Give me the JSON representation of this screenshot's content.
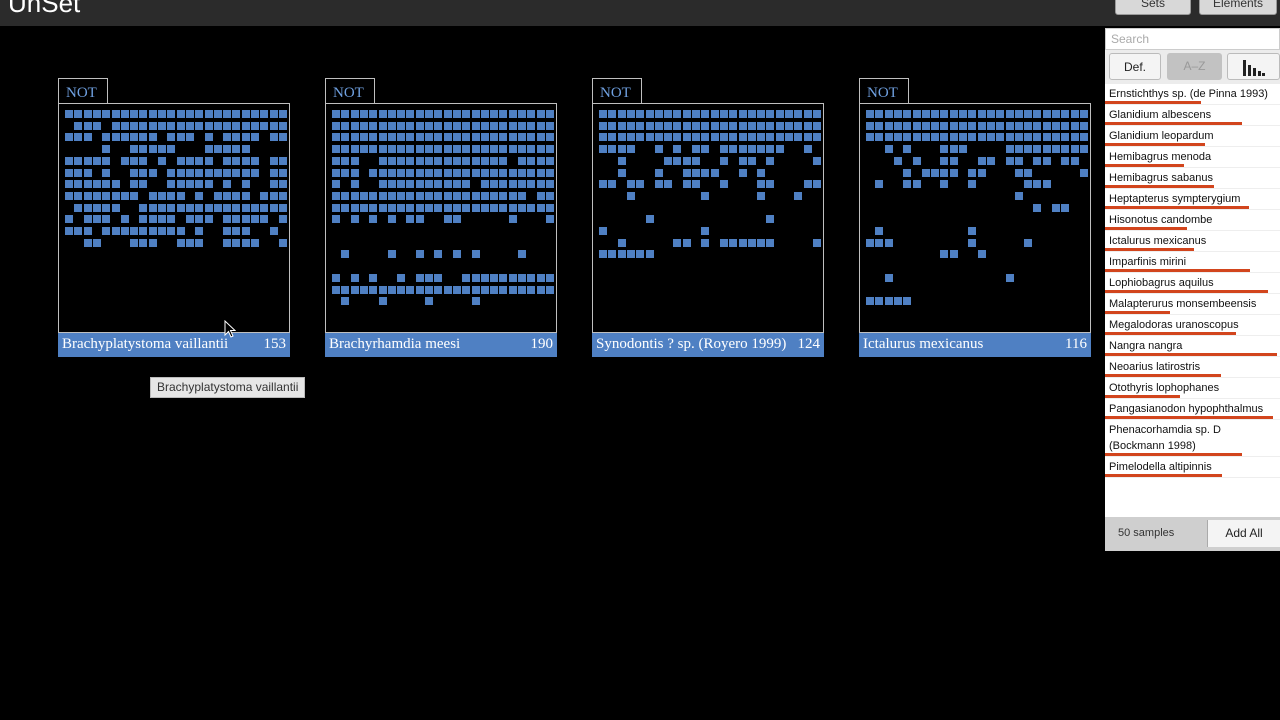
{
  "app": {
    "title": "UnSet"
  },
  "topbar": {
    "sets_label": "Sets",
    "elements_label": "Elements"
  },
  "cards": [
    {
      "not_label": "NOT",
      "name": "Brachyplatystoma vaillantii",
      "count": "153",
      "rows": [
        "111111111111111111111111",
        "011101111111111111111111",
        "111011111101110101111011",
        "000010011111000111110000",
        "111110111010111101111011",
        "111010011101111111111011",
        "111111011001111101010011",
        "111111110111101011110111",
        "011111001111111111111111",
        "101110101111011101111101",
        "111011111111101001110010",
        "001100011100111001111001"
      ]
    },
    {
      "not_label": "NOT",
      "name": "Brachyrhamdia meesi",
      "count": "190",
      "rows": [
        "111111111111111111111111",
        "111111111111111111111111",
        "111111111111111111111111",
        "111111111111111111111111",
        "111001111111111111101111",
        "111011111111111111111111",
        "101001111111111011111111",
        "111111111111111111111011",
        "111111111111111111111111",
        "101010101100110000010001",
        "000000000000000000000000",
        "000000000000000000000000",
        "010000100101010100001000",
        "000000000000000000000000",
        "101010010111001111111111",
        "111111111111111111111111",
        "010001000010000100000000"
      ]
    },
    {
      "not_label": "NOT",
      "name": "Synodontis ? sp. (Royero 1999)",
      "count": "124",
      "rows": [
        "111111111111111111111111",
        "111111111111111111111111",
        "111111111111111111111111",
        "111100101011011111110010",
        "001000011110010110100001",
        "001000100111100101000000",
        "110110110110010001100011",
        "000100000001000001000100",
        "000000000000000000000000",
        "000001000000000000100000",
        "100000000001000000000000",
        "001000001101011111100001",
        "111111000000000000000000"
      ]
    },
    {
      "not_label": "NOT",
      "name": "Ictalurus mexicanus",
      "count": "116",
      "rows": [
        "111111111111111111111111",
        "111111111111111111111111",
        "111111111111111111111111",
        "001010001110000111111111",
        "000101001100110110110110",
        "000010111101100011000001",
        "010011001001000001110000",
        "000000000000000010000000",
        "000000000000000000101100",
        "000000000000000000000000",
        "010000000001000000000000",
        "111000000001000001000000",
        "000000001100100000000000",
        "000000000000000000000000",
        "001000000000000100000000",
        "000000000000000000000000",
        "111110000000000000000000"
      ]
    }
  ],
  "tooltip": {
    "text": "Brachyplatystoma vaillantii"
  },
  "sidebar": {
    "search_placeholder": "Search",
    "sort_default_label": "Def.",
    "sort_az_label": "A–Z",
    "items": [
      {
        "label": "Ernstichthys sp. (de Pinna 1993)",
        "bar": 0.55
      },
      {
        "label": "Glanidium albescens",
        "bar": 0.78
      },
      {
        "label": "Glanidium leopardum",
        "bar": 0.57
      },
      {
        "label": "Hemibagrus menoda",
        "bar": 0.45
      },
      {
        "label": "Hemibagrus sabanus",
        "bar": 0.62
      },
      {
        "label": "Heptapterus sympterygium",
        "bar": 0.82
      },
      {
        "label": "Hisonotus candombe",
        "bar": 0.47
      },
      {
        "label": "Ictalurus mexicanus",
        "bar": 0.51
      },
      {
        "label": "Imparfinis mirini",
        "bar": 0.83
      },
      {
        "label": "Lophiobagrus aquilus",
        "bar": 0.93
      },
      {
        "label": "Malapterurus monsembeensis",
        "bar": 0.37
      },
      {
        "label": "Megalodoras uranoscopus",
        "bar": 0.75
      },
      {
        "label": "Nangra nangra",
        "bar": 0.98
      },
      {
        "label": "Neoarius latirostris",
        "bar": 0.66
      },
      {
        "label": "Otothyris lophophanes",
        "bar": 0.43
      },
      {
        "label": "Pangasianodon hypophthalmus",
        "bar": 0.96
      },
      {
        "label": "Phenacorhamdia sp. D (Bockmann 1998)",
        "bar": 0.78
      },
      {
        "label": "Pimelodella altipinnis",
        "bar": 0.67
      }
    ],
    "samples_label": "50 samples",
    "add_all_label": "Add All"
  }
}
